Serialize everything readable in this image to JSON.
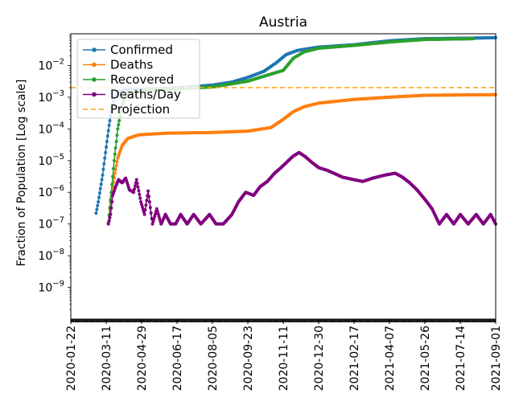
{
  "chart_data": {
    "type": "line",
    "title": "Austria",
    "xlabel": "",
    "ylabel": "Fraction of Population [Log scale]",
    "yscale": "log",
    "ylim": [
      1e-10,
      0.1
    ],
    "xlim": [
      "2020-01-22",
      "2021-09-01"
    ],
    "x_ticks": [
      "2020-01-22",
      "2020-03-11",
      "2020-04-29",
      "2020-06-17",
      "2020-08-05",
      "2020-09-23",
      "2020-11-11",
      "2020-12-30",
      "2021-02-17",
      "2021-04-07",
      "2021-05-26",
      "2021-07-14",
      "2021-09-01"
    ],
    "y_ticks": [
      {
        "value": 1e-09,
        "base": "10",
        "exp": "−9"
      },
      {
        "value": 1e-08,
        "base": "10",
        "exp": "−8"
      },
      {
        "value": 1e-07,
        "base": "10",
        "exp": "−7"
      },
      {
        "value": 1e-06,
        "base": "10",
        "exp": "−6"
      },
      {
        "value": 1e-05,
        "base": "10",
        "exp": "−5"
      },
      {
        "value": 0.0001,
        "base": "10",
        "exp": "−4"
      },
      {
        "value": 0.001,
        "base": "10",
        "exp": "−3"
      },
      {
        "value": 0.01,
        "base": "10",
        "exp": "−2"
      }
    ],
    "legend_location": "top-left",
    "series": [
      {
        "name": "Confirmed",
        "color": "#1f77b4",
        "marker": "dot",
        "points": [
          [
            "2020-02-26",
            2.2e-07
          ],
          [
            "2020-02-29",
            5e-07
          ],
          [
            "2020-03-03",
            1.3e-06
          ],
          [
            "2020-03-06",
            3.5e-06
          ],
          [
            "2020-03-09",
            1.2e-05
          ],
          [
            "2020-03-12",
            4e-05
          ],
          [
            "2020-03-15",
            0.00013
          ],
          [
            "2020-03-18",
            0.00035
          ],
          [
            "2020-03-22",
            0.001
          ],
          [
            "2020-03-28",
            0.00145
          ],
          [
            "2020-04-05",
            0.00165
          ],
          [
            "2020-04-20",
            0.00175
          ],
          [
            "2020-05-15",
            0.00185
          ],
          [
            "2020-06-20",
            0.002
          ],
          [
            "2020-08-05",
            0.0024
          ],
          [
            "2020-09-01",
            0.003
          ],
          [
            "2020-09-23",
            0.0042
          ],
          [
            "2020-10-15",
            0.0065
          ],
          [
            "2020-11-01",
            0.012
          ],
          [
            "2020-11-15",
            0.022
          ],
          [
            "2020-12-01",
            0.03
          ],
          [
            "2020-12-30",
            0.038
          ],
          [
            "2021-02-17",
            0.045
          ],
          [
            "2021-04-07",
            0.06
          ],
          [
            "2021-05-26",
            0.07
          ],
          [
            "2021-07-14",
            0.072
          ],
          [
            "2021-09-01",
            0.075
          ]
        ]
      },
      {
        "name": "Deaths",
        "color": "#ff7f0e",
        "marker": "dot",
        "points": [
          [
            "2020-03-14",
            1.1e-07
          ],
          [
            "2020-03-17",
            5e-07
          ],
          [
            "2020-03-20",
            1.5e-06
          ],
          [
            "2020-03-23",
            4e-06
          ],
          [
            "2020-03-27",
            1.2e-05
          ],
          [
            "2020-04-02",
            3e-05
          ],
          [
            "2020-04-10",
            5e-05
          ],
          [
            "2020-04-25",
            6.5e-05
          ],
          [
            "2020-06-01",
            7.3e-05
          ],
          [
            "2020-08-05",
            7.7e-05
          ],
          [
            "2020-09-23",
            8.5e-05
          ],
          [
            "2020-10-25",
            0.00011
          ],
          [
            "2020-11-11",
            0.0002
          ],
          [
            "2020-11-25",
            0.00035
          ],
          [
            "2020-12-10",
            0.0005
          ],
          [
            "2020-12-30",
            0.00065
          ],
          [
            "2021-02-17",
            0.00085
          ],
          [
            "2021-04-07",
            0.001
          ],
          [
            "2021-05-26",
            0.00115
          ],
          [
            "2021-09-01",
            0.0012
          ]
        ]
      },
      {
        "name": "Recovered",
        "color": "#2ca02c",
        "marker": "dot",
        "points": [
          [
            "2020-03-14",
            1.1e-07
          ],
          [
            "2020-03-18",
            1e-06
          ],
          [
            "2020-03-22",
            1e-05
          ],
          [
            "2020-03-27",
            0.0001
          ],
          [
            "2020-04-02",
            0.0006
          ],
          [
            "2020-04-10",
            0.0013
          ],
          [
            "2020-04-25",
            0.00155
          ],
          [
            "2020-06-01",
            0.00175
          ],
          [
            "2020-08-05",
            0.0021
          ],
          [
            "2020-09-23",
            0.0032
          ],
          [
            "2020-11-11",
            0.007
          ],
          [
            "2020-11-25",
            0.017
          ],
          [
            "2020-12-10",
            0.027
          ],
          [
            "2020-12-30",
            0.035
          ],
          [
            "2021-02-17",
            0.043
          ],
          [
            "2021-04-07",
            0.055
          ],
          [
            "2021-05-26",
            0.066
          ],
          [
            "2021-08-01",
            0.07
          ]
        ]
      },
      {
        "name": "Deaths/Day",
        "color": "#800080",
        "marker": "dot",
        "points": [
          [
            "2020-03-14",
            1e-07
          ],
          [
            "2020-03-17",
            2e-07
          ],
          [
            "2020-03-20",
            8e-07
          ],
          [
            "2020-03-24",
            1.5e-06
          ],
          [
            "2020-03-28",
            2.5e-06
          ],
          [
            "2020-04-02",
            2e-06
          ],
          [
            "2020-04-07",
            2.8e-06
          ],
          [
            "2020-04-12",
            1.2e-06
          ],
          [
            "2020-04-18",
            1e-06
          ],
          [
            "2020-04-22",
            2.5e-06
          ],
          [
            "2020-04-28",
            5e-07
          ],
          [
            "2020-05-03",
            2e-07
          ],
          [
            "2020-05-08",
            1.1e-06
          ],
          [
            "2020-05-14",
            1e-07
          ],
          [
            "2020-05-20",
            3e-07
          ],
          [
            "2020-05-26",
            1e-07
          ],
          [
            "2020-06-01",
            2e-07
          ],
          [
            "2020-06-08",
            1e-07
          ],
          [
            "2020-06-15",
            1e-07
          ],
          [
            "2020-06-22",
            2e-07
          ],
          [
            "2020-07-01",
            1e-07
          ],
          [
            "2020-07-10",
            2e-07
          ],
          [
            "2020-07-20",
            1e-07
          ],
          [
            "2020-08-01",
            2e-07
          ],
          [
            "2020-08-10",
            1e-07
          ],
          [
            "2020-08-20",
            1e-07
          ],
          [
            "2020-09-01",
            2e-07
          ],
          [
            "2020-09-10",
            5e-07
          ],
          [
            "2020-09-20",
            1e-06
          ],
          [
            "2020-10-01",
            8e-07
          ],
          [
            "2020-10-10",
            1.5e-06
          ],
          [
            "2020-10-20",
            2.2e-06
          ],
          [
            "2020-10-30",
            4e-06
          ],
          [
            "2020-11-08",
            6e-06
          ],
          [
            "2020-11-16",
            9e-06
          ],
          [
            "2020-11-25",
            1.4e-05
          ],
          [
            "2020-12-03",
            1.8e-05
          ],
          [
            "2020-12-12",
            1.3e-05
          ],
          [
            "2020-12-20",
            9e-06
          ],
          [
            "2020-12-30",
            6e-06
          ],
          [
            "2021-01-10",
            5e-06
          ],
          [
            "2021-01-20",
            4e-06
          ],
          [
            "2021-02-01",
            3e-06
          ],
          [
            "2021-02-17",
            2.5e-06
          ],
          [
            "2021-03-01",
            2.2e-06
          ],
          [
            "2021-03-15",
            2.8e-06
          ],
          [
            "2021-04-01",
            3.5e-06
          ],
          [
            "2021-04-15",
            4e-06
          ],
          [
            "2021-04-25",
            3e-06
          ],
          [
            "2021-05-05",
            2e-06
          ],
          [
            "2021-05-15",
            1.2e-06
          ],
          [
            "2021-05-26",
            6e-07
          ],
          [
            "2021-06-05",
            3e-07
          ],
          [
            "2021-06-15",
            1e-07
          ],
          [
            "2021-06-25",
            2e-07
          ],
          [
            "2021-07-05",
            1e-07
          ],
          [
            "2021-07-14",
            2e-07
          ],
          [
            "2021-07-25",
            1e-07
          ],
          [
            "2021-08-05",
            2e-07
          ],
          [
            "2021-08-15",
            1e-07
          ],
          [
            "2021-08-25",
            2e-07
          ],
          [
            "2021-09-01",
            1e-07
          ]
        ]
      }
    ],
    "projection": {
      "name": "Projection",
      "color": "#ffa500",
      "style": "dashed",
      "value": 0.002
    }
  }
}
